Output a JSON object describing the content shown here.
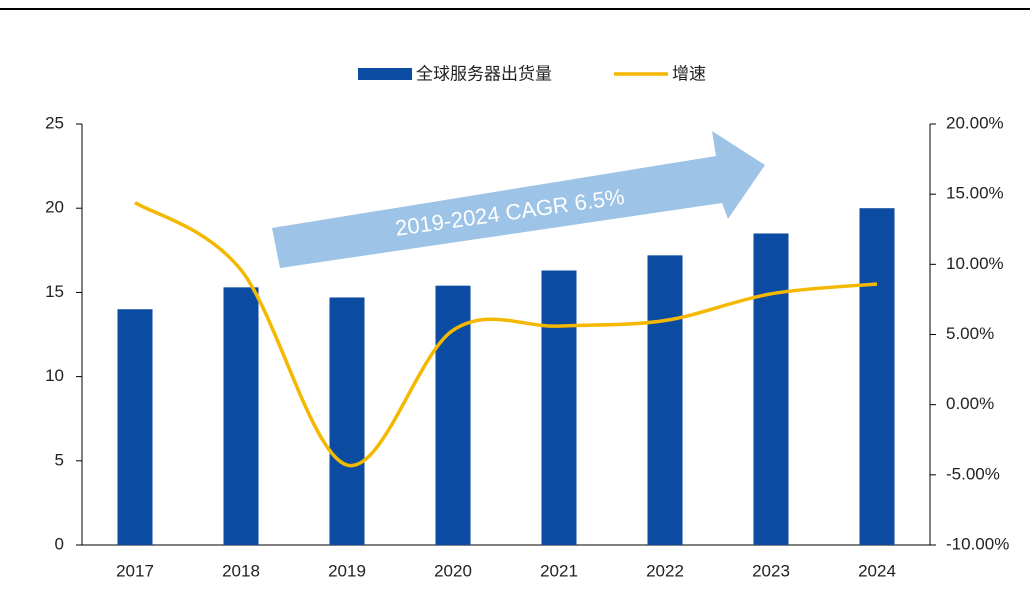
{
  "chart_data": {
    "type": "bar_line",
    "categories": [
      "2017",
      "2018",
      "2019",
      "2020",
      "2021",
      "2022",
      "2023",
      "2024"
    ],
    "series": [
      {
        "name": "全球服务器出货量",
        "color": "#0b4ba2",
        "type": "bar",
        "values": [
          14.0,
          15.3,
          14.7,
          15.4,
          16.3,
          17.2,
          18.5,
          20.0
        ]
      },
      {
        "name": "增速",
        "color": "#f5b800",
        "type": "line",
        "axis": "y2",
        "values": [
          14.4,
          9.6,
          -4.3,
          5.3,
          5.6,
          6.0,
          7.9,
          8.6
        ]
      }
    ],
    "ylim": [
      0,
      25
    ],
    "yticks": [
      0,
      5,
      10,
      15,
      20,
      25
    ],
    "y2lim": [
      -10,
      20
    ],
    "y2ticks": [
      {
        "value": -10,
        "label": "-10.00%"
      },
      {
        "value": -5,
        "label": "-5.00%"
      },
      {
        "value": 0,
        "label": "0.00%"
      },
      {
        "value": 5,
        "label": "5.00%"
      },
      {
        "value": 10,
        "label": "10.00%"
      },
      {
        "value": 15,
        "label": "15.00%"
      },
      {
        "value": 20,
        "label": "20.00%"
      }
    ],
    "annotation": "2019-2024  CAGR 6.5%"
  }
}
